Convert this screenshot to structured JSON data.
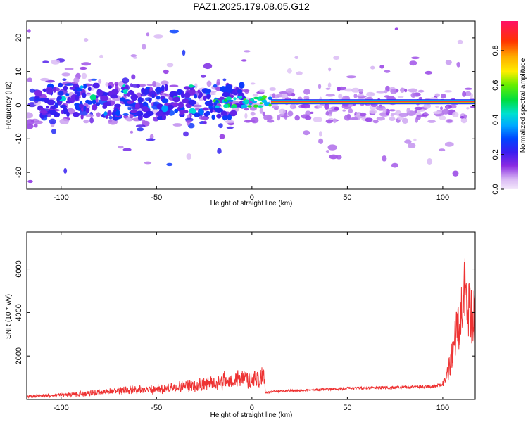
{
  "title": "PAZ1.2025.179.08.05.G12",
  "chart_data": [
    {
      "type": "heatmap",
      "title": "PAZ1.2025.179.08.05.G12",
      "xlabel": "Height of straight line (km)",
      "ylabel": "Frequency (Hz)",
      "xlim": [
        -118,
        117
      ],
      "ylim": [
        -25,
        25
      ],
      "xticks": [
        -100,
        -50,
        0,
        50,
        100
      ],
      "yticks": [
        -20,
        -10,
        0,
        10,
        20
      ],
      "colorbar": {
        "label": "Normalized spectral amplitude",
        "range": [
          0,
          0.97
        ],
        "ticks": [
          0.0,
          0.2,
          0.4,
          0.6,
          0.8
        ],
        "colormap": "rainbow (purple-blue-cyan-green-yellow-orange-red-pink)"
      },
      "features": {
        "main_line_frequency_hz": 1.0,
        "main_line_height_range_km": [
          10,
          117
        ],
        "noisy_region_height_range_km": [
          -118,
          -10
        ],
        "peak_amplitude": 0.95
      }
    },
    {
      "type": "line",
      "xlabel": "Height of straight line (km)",
      "ylabel": "SNR (10 * v/v)",
      "xlim": [
        -118,
        117
      ],
      "ylim": [
        0,
        7700
      ],
      "xticks": [
        -100,
        -50,
        0,
        50,
        100
      ],
      "yticks": [
        2000,
        4000,
        6000
      ],
      "color": "#ee3333",
      "series": [
        {
          "x": [
            -118,
            -110,
            -100,
            -90,
            -80,
            -70,
            -60,
            -50,
            -40,
            -35,
            -30,
            -25,
            -20,
            -15,
            -10,
            -5,
            0,
            5,
            6.5,
            7,
            10,
            20,
            30,
            40,
            50,
            60,
            70,
            80,
            90,
            95,
            100,
            103,
            105,
            107,
            108,
            110,
            111,
            112,
            113,
            114,
            115,
            117
          ],
          "values": [
            120,
            150,
            180,
            230,
            300,
            350,
            400,
            430,
            500,
            560,
            600,
            640,
            700,
            760,
            820,
            860,
            880,
            920,
            980,
            300,
            360,
            400,
            430,
            460,
            500,
            520,
            540,
            560,
            580,
            600,
            700,
            1300,
            2200,
            3000,
            3200,
            4200,
            6500,
            5000,
            4500,
            4000,
            3800,
            3900
          ]
        }
      ]
    }
  ]
}
